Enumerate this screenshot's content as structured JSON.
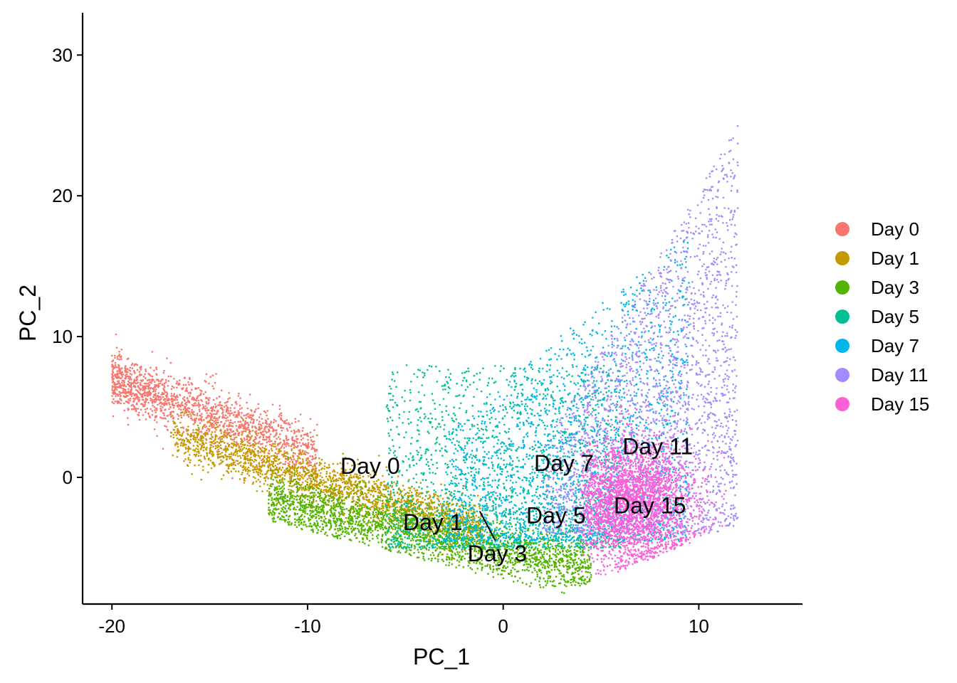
{
  "chart_data": {
    "type": "scatter",
    "title": "",
    "xlabel": "PC_1",
    "ylabel": "PC_2",
    "xlim": [
      -21.5,
      15.3
    ],
    "ylim": [
      -9,
      33
    ],
    "xticks": [
      -20,
      -10,
      0,
      10
    ],
    "yticks": [
      0,
      10,
      20,
      30
    ],
    "xtick_labels": [
      "-20",
      "-10",
      "0",
      "10"
    ],
    "ytick_labels": [
      "0",
      "10",
      "20",
      "30"
    ],
    "grid": false,
    "legend_position": "right",
    "series": [
      {
        "name": "Day 0",
        "color": "#F8766D",
        "cloud": {
          "x_range": [
            -20,
            -9.5
          ],
          "y_range": [
            -2,
            9
          ],
          "n": 1600
        }
      },
      {
        "name": "Day 1",
        "color": "#C49A00",
        "cloud": {
          "x_range": [
            -17,
            -1
          ],
          "y_range": [
            -5.5,
            6
          ],
          "n": 2200
        }
      },
      {
        "name": "Day 3",
        "color": "#53B400",
        "cloud": {
          "x_range": [
            -12,
            4.5
          ],
          "y_range": [
            -7,
            3
          ],
          "n": 2400
        }
      },
      {
        "name": "Day 5",
        "color": "#00C094",
        "cloud": {
          "x_range": [
            -6,
            6
          ],
          "y_range": [
            -6,
            11
          ],
          "n": 1700
        }
      },
      {
        "name": "Day 7",
        "color": "#00B6EB",
        "cloud": {
          "x_range": [
            -4,
            10
          ],
          "y_range": [
            -6,
            20
          ],
          "n": 2000
        }
      },
      {
        "name": "Day 11",
        "color": "#A58AFF",
        "cloud": {
          "x_range": [
            2,
            12
          ],
          "y_range": [
            -5,
            28
          ],
          "n": 2400
        }
      },
      {
        "name": "Day 15",
        "color": "#FB61D7",
        "cloud": {
          "x_range": [
            4,
            10
          ],
          "y_range": [
            -6,
            8
          ],
          "n": 3000
        }
      }
    ],
    "annotations": [
      {
        "text": "Day 0",
        "x": -6.8,
        "y": 0.8
      },
      {
        "text": "Day 1",
        "x": -3.6,
        "y": -3.2
      },
      {
        "text": "Day 3",
        "x": -0.3,
        "y": -5.4
      },
      {
        "text": "Day 5",
        "x": 2.7,
        "y": -2.7
      },
      {
        "text": "Day 7",
        "x": 3.1,
        "y": 1.0
      },
      {
        "text": "Day 11",
        "x": 7.9,
        "y": 2.2
      },
      {
        "text": "Day 15",
        "x": 7.5,
        "y": -2.0
      }
    ],
    "leader_line": {
      "from": [
        -1.2,
        -2.4
      ],
      "to": [
        -0.4,
        -4.5
      ]
    }
  }
}
